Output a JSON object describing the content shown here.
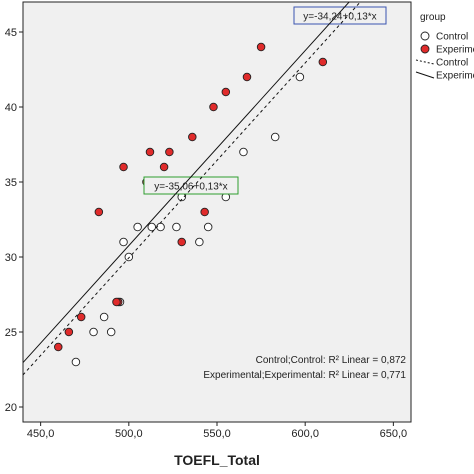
{
  "chart_data": {
    "type": "scatter",
    "xlabel": "TOEFL_Total",
    "ylabel": "",
    "xlim": [
      440,
      660
    ],
    "ylim": [
      19,
      47
    ],
    "xticks": [
      450,
      500,
      550,
      600,
      650
    ],
    "xtick_labels": [
      "450,0",
      "500,0",
      "550,0",
      "600,0",
      "650,0"
    ],
    "yticks": [
      20,
      25,
      30,
      35,
      40,
      45
    ],
    "ytick_labels": [
      "20",
      "25",
      "30",
      "35",
      "40",
      "45"
    ],
    "grid": false,
    "legend_title": "group",
    "legend_placement": "right",
    "series": [
      {
        "name": "Control",
        "marker": "open-circle",
        "color": "#ffffff",
        "points": [
          [
            470,
            23
          ],
          [
            480,
            25
          ],
          [
            486,
            26
          ],
          [
            490,
            25
          ],
          [
            495,
            27
          ],
          [
            497,
            31
          ],
          [
            500,
            30
          ],
          [
            505,
            32
          ],
          [
            513,
            32
          ],
          [
            518,
            32
          ],
          [
            527,
            32
          ],
          [
            530,
            34
          ],
          [
            545,
            32
          ],
          [
            540,
            31
          ],
          [
            555,
            34
          ],
          [
            565,
            37
          ],
          [
            583,
            38
          ],
          [
            597,
            42
          ]
        ]
      },
      {
        "name": "Experimental",
        "marker": "filled-circle",
        "color": "#e02b2b",
        "points": [
          [
            460,
            24
          ],
          [
            466,
            25
          ],
          [
            473,
            26
          ],
          [
            494,
            27
          ],
          [
            493,
            27
          ],
          [
            483,
            33
          ],
          [
            497,
            36
          ],
          [
            510,
            35
          ],
          [
            512,
            37
          ],
          [
            520,
            36
          ],
          [
            523,
            37
          ],
          [
            530,
            31
          ],
          [
            536,
            38
          ],
          [
            543,
            33
          ],
          [
            548,
            40
          ],
          [
            555,
            41
          ],
          [
            567,
            42
          ],
          [
            575,
            44
          ],
          [
            610,
            43
          ]
        ]
      }
    ],
    "fit_lines": [
      {
        "name": "Control",
        "style": "dashed",
        "intercept": -35.06,
        "slope": 0.13,
        "label": "y=-35,06+0,13*x"
      },
      {
        "name": "Experimental",
        "style": "solid",
        "intercept": -34.24,
        "slope": 0.13,
        "label": "y=-34,24+0,13*x"
      }
    ],
    "legend": [
      {
        "kind": "open-circle",
        "label": "Control"
      },
      {
        "kind": "filled-circle",
        "label": "Experimental"
      },
      {
        "kind": "dashed-line",
        "label": "Control"
      },
      {
        "kind": "solid-line",
        "label": "Experimental"
      }
    ],
    "r2_annotations": [
      {
        "label": "Control;Control: R² Linear = 0,872"
      },
      {
        "label": "Experimental;Experimental: R² Linear = 0,771"
      }
    ],
    "equation_box_colors": {
      "Control": "#2e9e2e",
      "Experimental": "#3a55b0"
    },
    "plot_background": "#f0f0f0"
  }
}
